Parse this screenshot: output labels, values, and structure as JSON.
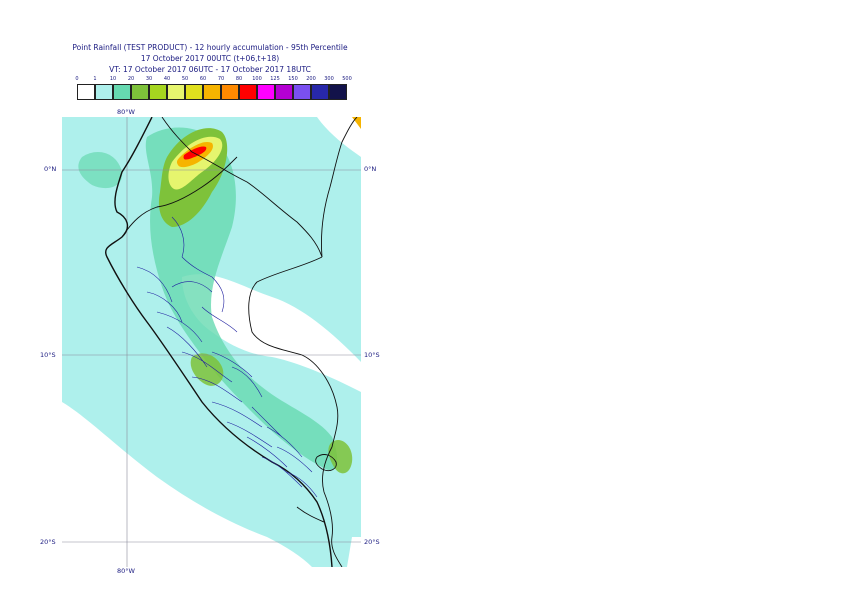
{
  "title": {
    "line1": "Point Rainfall (TEST PRODUCT) - 12 hourly accumulation - 95th Percentile",
    "line2": "17 October 2017 00UTC (t+06,t+18)",
    "line3": "VT: 17 October 2017 06UTC - 17 October 2017 18UTC"
  },
  "legend": {
    "thresholds": [
      "0",
      "1",
      "10",
      "20",
      "30",
      "40",
      "50",
      "60",
      "70",
      "80",
      "100",
      "125",
      "150",
      "200",
      "300",
      "500"
    ],
    "colors": [
      "#ffffff",
      "#aef0ec",
      "#66d9b0",
      "#7ec23a",
      "#a6d61f",
      "#e6f56e",
      "#e0e01e",
      "#f6b400",
      "#ff8a00",
      "#ff0000",
      "#ff00ff",
      "#b400d2",
      "#7a50f0",
      "#2828a8",
      "#12124a"
    ]
  },
  "axes": {
    "top_lon": "80°W",
    "bottom_lon": "80°W",
    "lat_left": [
      "0°N",
      "10°S",
      "20°S"
    ],
    "lat_right": [
      "0°N",
      "10°S",
      "20°S"
    ]
  },
  "map_colors": {
    "base": "#aef0ec",
    "dry": "#ffffff",
    "light": "#66d9b0",
    "moderate": "#7ec23a",
    "heavy": "#e6f56e",
    "very_heavy": "#f6b400",
    "extreme": "#ff0000"
  }
}
